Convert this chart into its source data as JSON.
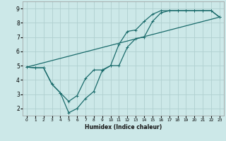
{
  "xlabel": "Humidex (Indice chaleur)",
  "ylabel": "",
  "bg_color": "#cce8e8",
  "grid_color": "#b0d0d0",
  "line_color": "#1a6b6b",
  "xlim": [
    -0.5,
    23.5
  ],
  "ylim": [
    1.5,
    9.5
  ],
  "xticks": [
    0,
    1,
    2,
    3,
    4,
    5,
    6,
    7,
    8,
    9,
    10,
    11,
    12,
    13,
    14,
    15,
    16,
    17,
    18,
    19,
    20,
    21,
    22,
    23
  ],
  "yticks": [
    2,
    3,
    4,
    5,
    6,
    7,
    8,
    9
  ],
  "line1_x": [
    0,
    1,
    2,
    3,
    4,
    5,
    6,
    7,
    8,
    9,
    10,
    11,
    12,
    13,
    14,
    15,
    16,
    17,
    18,
    19,
    20,
    21,
    22,
    23
  ],
  "line1_y": [
    4.9,
    4.85,
    4.85,
    3.7,
    3.1,
    2.5,
    2.9,
    4.1,
    4.7,
    4.7,
    5.0,
    5.0,
    6.3,
    6.9,
    7.0,
    8.1,
    8.7,
    8.85,
    8.85,
    8.85,
    8.85,
    8.85,
    8.85,
    8.4
  ],
  "line2_x": [
    0,
    1,
    2,
    3,
    4,
    5,
    6,
    7,
    8,
    9,
    10,
    11,
    12,
    13,
    14,
    15,
    16,
    17,
    18,
    19,
    20,
    21,
    22,
    23
  ],
  "line2_y": [
    4.9,
    4.85,
    4.85,
    3.7,
    3.1,
    1.7,
    2.0,
    2.7,
    3.2,
    4.65,
    5.0,
    6.5,
    7.4,
    7.5,
    8.1,
    8.6,
    8.85,
    8.85,
    8.85,
    8.85,
    8.85,
    8.85,
    8.85,
    8.4
  ],
  "line3_x": [
    0,
    23
  ],
  "line3_y": [
    4.9,
    8.4
  ]
}
